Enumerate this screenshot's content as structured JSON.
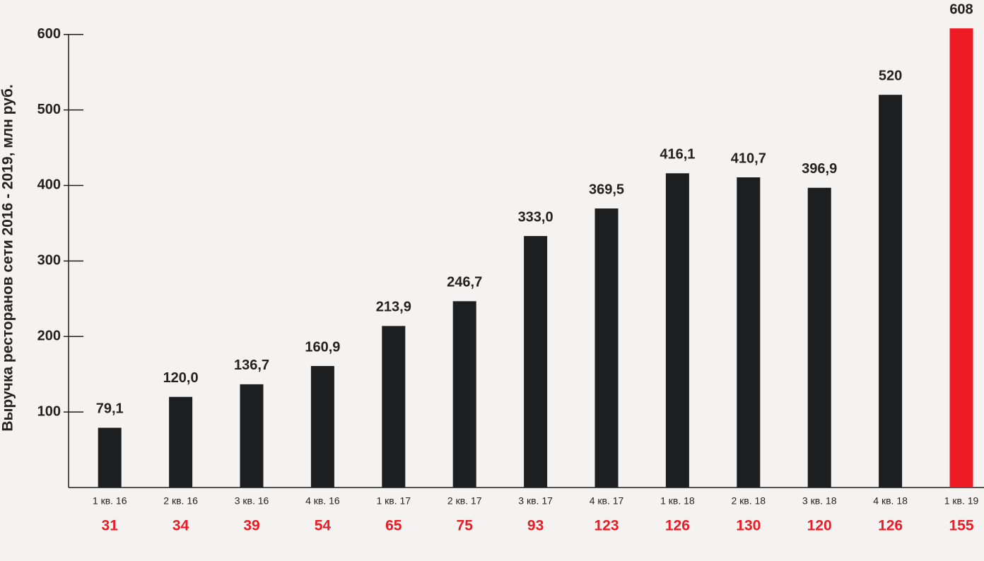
{
  "chart_data": {
    "type": "bar",
    "y_axis_label": "Выручка ресторанов сети 2016 - 2019, млн руб.",
    "categories": [
      "1 кв. 16",
      "2 кв. 16",
      "3 кв. 16",
      "4 кв. 16",
      "1 кв. 17",
      "2 кв. 17",
      "3 кв. 17",
      "4 кв. 17",
      "1 кв. 18",
      "2 кв. 18",
      "3 кв. 18",
      "4 кв. 18",
      "1 кв. 19"
    ],
    "values": [
      79.1,
      120.0,
      136.7,
      160.9,
      213.9,
      246.7,
      333.0,
      369.5,
      416.1,
      410.7,
      396.9,
      520,
      608
    ],
    "value_labels": [
      "79,1",
      "120,0",
      "136,7",
      "160,9",
      "213,9",
      "246,7",
      "333,0",
      "369,5",
      "416,1",
      "410,7",
      "396,9",
      "520",
      "608"
    ],
    "colors": [
      "#1d1e20",
      "#1d1e20",
      "#1d1e20",
      "#1d1e20",
      "#1d1e20",
      "#1d1e20",
      "#1d1e20",
      "#1d1e20",
      "#1d1e20",
      "#1d1e20",
      "#1d1e20",
      "#1d1e20",
      "#ed1c24"
    ],
    "secondary_values": [
      31,
      34,
      39,
      54,
      65,
      75,
      93,
      123,
      126,
      130,
      120,
      126,
      155
    ],
    "secondary_color": "#ed1c24",
    "ylim": [
      0,
      610
    ],
    "yticks": [
      100,
      200,
      300,
      400,
      500,
      600
    ],
    "grid": false
  }
}
